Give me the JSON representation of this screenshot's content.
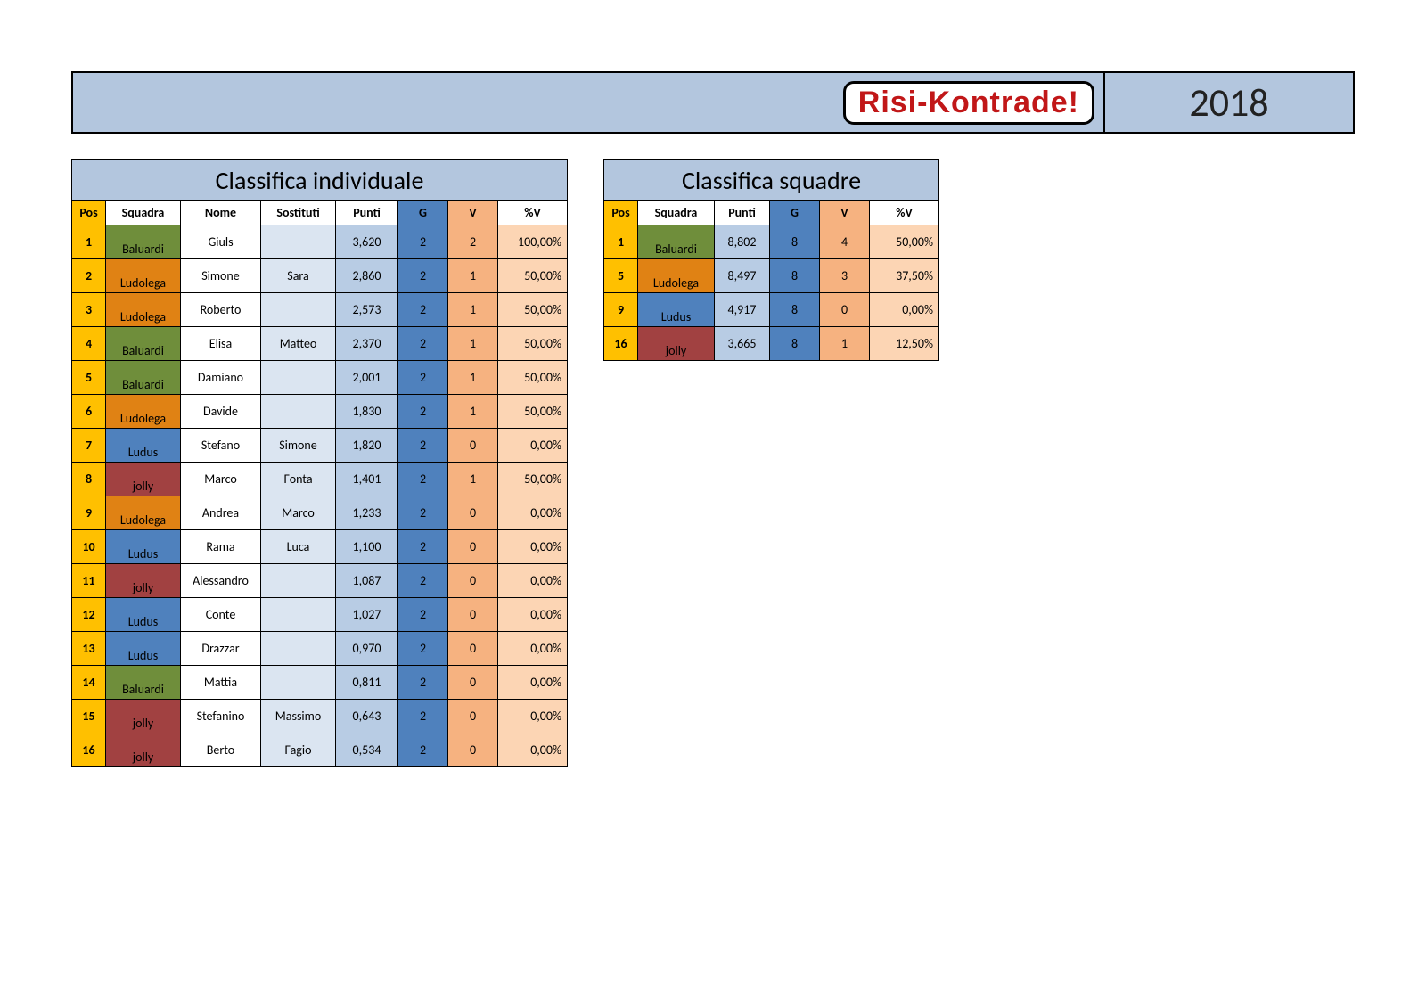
{
  "banner": {
    "logo_text": "Risi-Kontrade!",
    "year": "2018",
    "bg_color": "#b3c6de",
    "logo_text_color": "#c11718"
  },
  "team_colors": {
    "Baluardi": "#6f8e3b",
    "Ludolega": "#e08214",
    "Ludus": "#4f81bd",
    "jolly": "#a14141"
  },
  "individual": {
    "title": "Classifica individuale",
    "columns": [
      "Pos",
      "Squadra",
      "Nome",
      "Sostituti",
      "Punti",
      "G",
      "V",
      "%V"
    ],
    "rows": [
      {
        "pos": "1",
        "squadra": "Baluardi",
        "nome": "Giuls",
        "sost": "",
        "punti": "3,620",
        "g": "2",
        "v": "2",
        "pctv": "100,00%"
      },
      {
        "pos": "2",
        "squadra": "Ludolega",
        "nome": "Simone",
        "sost": "Sara",
        "punti": "2,860",
        "g": "2",
        "v": "1",
        "pctv": "50,00%"
      },
      {
        "pos": "3",
        "squadra": "Ludolega",
        "nome": "Roberto",
        "sost": "",
        "punti": "2,573",
        "g": "2",
        "v": "1",
        "pctv": "50,00%"
      },
      {
        "pos": "4",
        "squadra": "Baluardi",
        "nome": "Elisa",
        "sost": "Matteo",
        "punti": "2,370",
        "g": "2",
        "v": "1",
        "pctv": "50,00%"
      },
      {
        "pos": "5",
        "squadra": "Baluardi",
        "nome": "Damiano",
        "sost": "",
        "punti": "2,001",
        "g": "2",
        "v": "1",
        "pctv": "50,00%"
      },
      {
        "pos": "6",
        "squadra": "Ludolega",
        "nome": "Davide",
        "sost": "",
        "punti": "1,830",
        "g": "2",
        "v": "1",
        "pctv": "50,00%"
      },
      {
        "pos": "7",
        "squadra": "Ludus",
        "nome": "Stefano",
        "sost": "Simone",
        "punti": "1,820",
        "g": "2",
        "v": "0",
        "pctv": "0,00%"
      },
      {
        "pos": "8",
        "squadra": "jolly",
        "nome": "Marco",
        "sost": "Fonta",
        "punti": "1,401",
        "g": "2",
        "v": "1",
        "pctv": "50,00%"
      },
      {
        "pos": "9",
        "squadra": "Ludolega",
        "nome": "Andrea",
        "sost": "Marco",
        "punti": "1,233",
        "g": "2",
        "v": "0",
        "pctv": "0,00%"
      },
      {
        "pos": "10",
        "squadra": "Ludus",
        "nome": "Rama",
        "sost": "Luca",
        "punti": "1,100",
        "g": "2",
        "v": "0",
        "pctv": "0,00%"
      },
      {
        "pos": "11",
        "squadra": "jolly",
        "nome": "Alessandro",
        "sost": "",
        "punti": "1,087",
        "g": "2",
        "v": "0",
        "pctv": "0,00%"
      },
      {
        "pos": "12",
        "squadra": "Ludus",
        "nome": "Conte",
        "sost": "",
        "punti": "1,027",
        "g": "2",
        "v": "0",
        "pctv": "0,00%"
      },
      {
        "pos": "13",
        "squadra": "Ludus",
        "nome": "Drazzar",
        "sost": "",
        "punti": "0,970",
        "g": "2",
        "v": "0",
        "pctv": "0,00%"
      },
      {
        "pos": "14",
        "squadra": "Baluardi",
        "nome": "Mattia",
        "sost": "",
        "punti": "0,811",
        "g": "2",
        "v": "0",
        "pctv": "0,00%"
      },
      {
        "pos": "15",
        "squadra": "jolly",
        "nome": "Stefanino",
        "sost": "Massimo",
        "punti": "0,643",
        "g": "2",
        "v": "0",
        "pctv": "0,00%"
      },
      {
        "pos": "16",
        "squadra": "jolly",
        "nome": "Berto",
        "sost": "Fagio",
        "punti": "0,534",
        "g": "2",
        "v": "0",
        "pctv": "0,00%"
      }
    ]
  },
  "teams": {
    "title": "Classifica squadre",
    "columns": [
      "Pos",
      "Squadra",
      "Punti",
      "G",
      "V",
      "%V"
    ],
    "rows": [
      {
        "pos": "1",
        "squadra": "Baluardi",
        "punti": "8,802",
        "g": "8",
        "v": "4",
        "pctv": "50,00%"
      },
      {
        "pos": "5",
        "squadra": "Ludolega",
        "punti": "8,497",
        "g": "8",
        "v": "3",
        "pctv": "37,50%"
      },
      {
        "pos": "9",
        "squadra": "Ludus",
        "punti": "4,917",
        "g": "8",
        "v": "0",
        "pctv": "0,00%"
      },
      {
        "pos": "16",
        "squadra": "jolly",
        "punti": "3,665",
        "g": "8",
        "v": "1",
        "pctv": "12,50%"
      }
    ]
  }
}
